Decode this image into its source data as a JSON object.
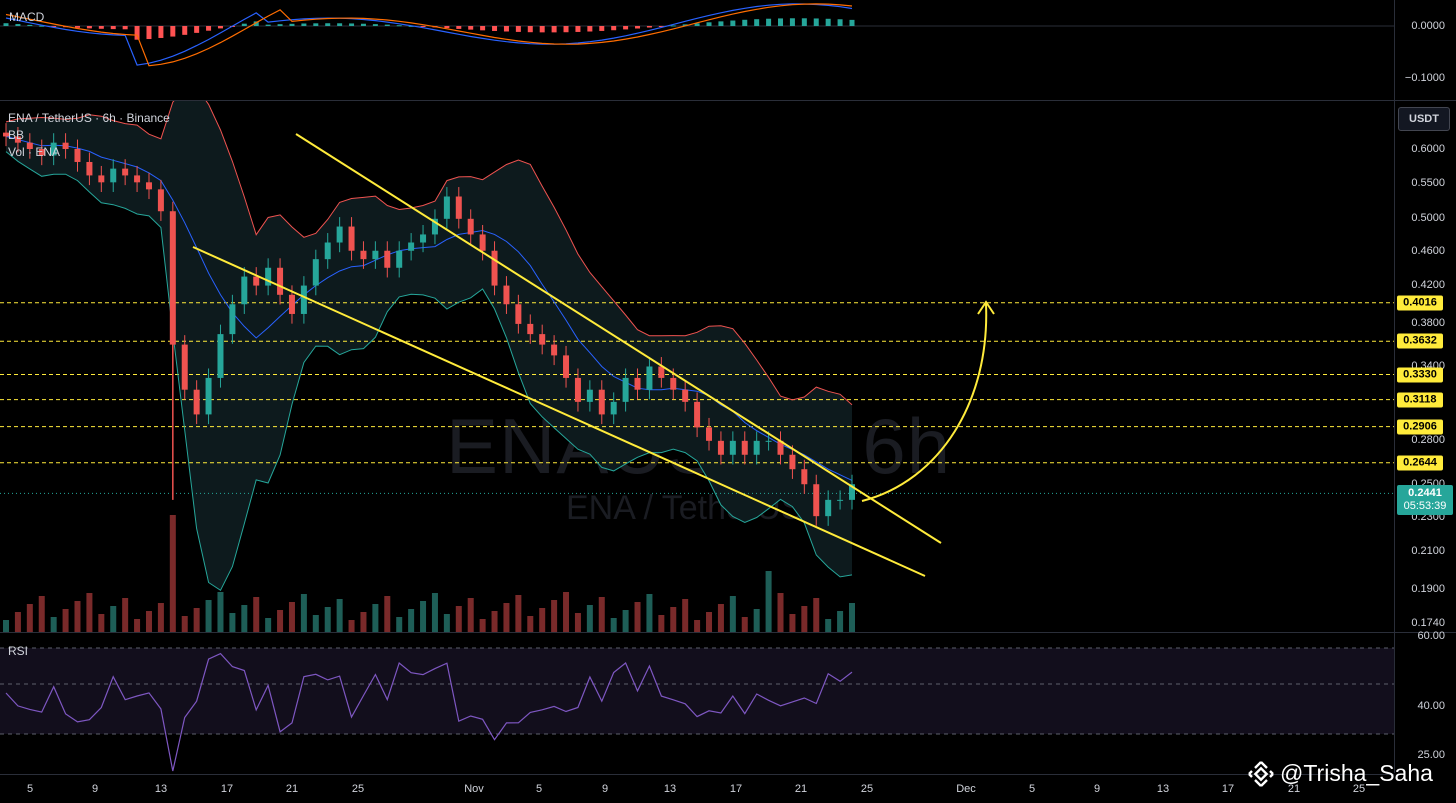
{
  "chart_title": "ENA / TetherUS · 6h · Binance",
  "indicators": {
    "macd": "MACD",
    "bb": "BB",
    "vol": "Vol · ENA",
    "rsi": "RSI"
  },
  "watermark": {
    "symbol": "ENAUSDT, 6h",
    "name": "ENA / TetherUS"
  },
  "credit": "@Trisha_Saha",
  "axis_unit": "USDT",
  "macd_axis": [
    "0.0000",
    "−0.1000"
  ],
  "price_axis": [
    "0.6000",
    "0.5500",
    "0.5000",
    "0.4600",
    "0.4200",
    "0.3800",
    "0.3400",
    "0.2800",
    "0.2500",
    "0.2300",
    "0.2100",
    "0.1900",
    "0.1740"
  ],
  "rsi_axis": [
    "60.00",
    "40.00",
    "25.00"
  ],
  "levels": [
    "0.4016",
    "0.3632",
    "0.3330",
    "0.3118",
    "0.2906",
    "0.2644"
  ],
  "last_price": {
    "price": "0.2441",
    "countdown": "05:53:39"
  },
  "x_axis": [
    "5",
    "9",
    "13",
    "17",
    "21",
    "25",
    "Nov",
    "5",
    "9",
    "13",
    "17",
    "21",
    "25",
    "Dec",
    "5",
    "9",
    "13",
    "17",
    "21",
    "25"
  ],
  "colors": {
    "up": "#26a69a",
    "down": "#ef5350",
    "trendline": "#ffeb3b",
    "bb_upper": "#ef5350",
    "bb_basis": "#2962ff",
    "bb_lower": "#26a69a",
    "rsi": "#7e57c2"
  },
  "chart_data": {
    "type": "candlestick",
    "symbol": "ENA / TetherUS",
    "timeframe": "6h",
    "exchange": "Binance",
    "last_price": 0.2441,
    "horizontal_levels": [
      0.4016,
      0.3632,
      0.333,
      0.3118,
      0.2906,
      0.2644
    ],
    "price_range": [
      0.174,
      0.63
    ],
    "pattern": "falling wedge with projected breakout toward 0.4016",
    "close_series": [
      0.62,
      0.61,
      0.6,
      0.59,
      0.61,
      0.6,
      0.58,
      0.56,
      0.55,
      0.57,
      0.56,
      0.55,
      0.54,
      0.51,
      0.36,
      0.32,
      0.3,
      0.33,
      0.37,
      0.4,
      0.43,
      0.42,
      0.44,
      0.41,
      0.39,
      0.42,
      0.45,
      0.47,
      0.49,
      0.46,
      0.45,
      0.46,
      0.44,
      0.46,
      0.47,
      0.48,
      0.5,
      0.53,
      0.5,
      0.48,
      0.46,
      0.42,
      0.4,
      0.38,
      0.37,
      0.36,
      0.35,
      0.33,
      0.31,
      0.32,
      0.3,
      0.31,
      0.33,
      0.32,
      0.34,
      0.33,
      0.32,
      0.31,
      0.29,
      0.28,
      0.27,
      0.28,
      0.27,
      0.28,
      0.28,
      0.27,
      0.26,
      0.25,
      0.23,
      0.24,
      0.24,
      0.25
    ],
    "rsi_last": 48
  }
}
